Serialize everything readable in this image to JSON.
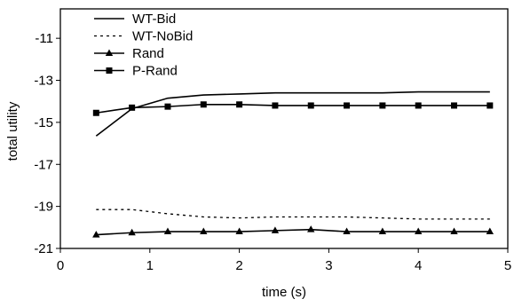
{
  "chart_data": {
    "type": "line",
    "title": "",
    "xlabel": "time (s)",
    "ylabel": "total utility",
    "xlim": [
      0,
      5
    ],
    "ylim": [
      -21,
      -9.6
    ],
    "x_ticks": [
      0,
      1,
      2,
      3,
      4,
      5
    ],
    "x_tick_labels": [
      "0",
      "1",
      "2",
      "3",
      "4",
      "5"
    ],
    "y_ticks": [
      -11,
      -13,
      -15,
      -17,
      -19,
      -21
    ],
    "y_tick_labels": [
      "-11",
      "-13",
      "-15",
      "-17",
      "-19",
      "-21"
    ],
    "grid": false,
    "legend_position": "top-left",
    "series": [
      {
        "name": "WT-Bid",
        "style": "solid",
        "marker": "none",
        "color": "#000000",
        "x": [
          0.4,
          0.8,
          1.2,
          1.6,
          2.0,
          2.4,
          2.8,
          3.2,
          3.6,
          4.0,
          4.4,
          4.8
        ],
        "y": [
          -15.65,
          -14.35,
          -13.85,
          -13.7,
          -13.65,
          -13.6,
          -13.6,
          -13.6,
          -13.6,
          -13.55,
          -13.55,
          -13.55
        ]
      },
      {
        "name": "WT-NoBid",
        "style": "dotted",
        "marker": "none",
        "color": "#000000",
        "x": [
          0.4,
          0.8,
          1.2,
          1.6,
          2.0,
          2.4,
          2.8,
          3.2,
          3.6,
          4.0,
          4.4,
          4.8
        ],
        "y": [
          -19.15,
          -19.15,
          -19.35,
          -19.5,
          -19.55,
          -19.5,
          -19.5,
          -19.5,
          -19.55,
          -19.6,
          -19.6,
          -19.6
        ]
      },
      {
        "name": "Rand",
        "style": "solid",
        "marker": "triangle",
        "color": "#000000",
        "x": [
          0.4,
          0.8,
          1.2,
          1.6,
          2.0,
          2.4,
          2.8,
          3.2,
          3.6,
          4.0,
          4.4,
          4.8
        ],
        "y": [
          -20.35,
          -20.25,
          -20.2,
          -20.2,
          -20.2,
          -20.15,
          -20.1,
          -20.2,
          -20.2,
          -20.2,
          -20.2,
          -20.2
        ]
      },
      {
        "name": "P-Rand",
        "style": "solid",
        "marker": "square",
        "color": "#000000",
        "x": [
          0.4,
          0.8,
          1.2,
          1.6,
          2.0,
          2.4,
          2.8,
          3.2,
          3.6,
          4.0,
          4.4,
          4.8
        ],
        "y": [
          -14.55,
          -14.3,
          -14.25,
          -14.15,
          -14.15,
          -14.2,
          -14.2,
          -14.2,
          -14.2,
          -14.2,
          -14.2,
          -14.2
        ]
      }
    ]
  }
}
